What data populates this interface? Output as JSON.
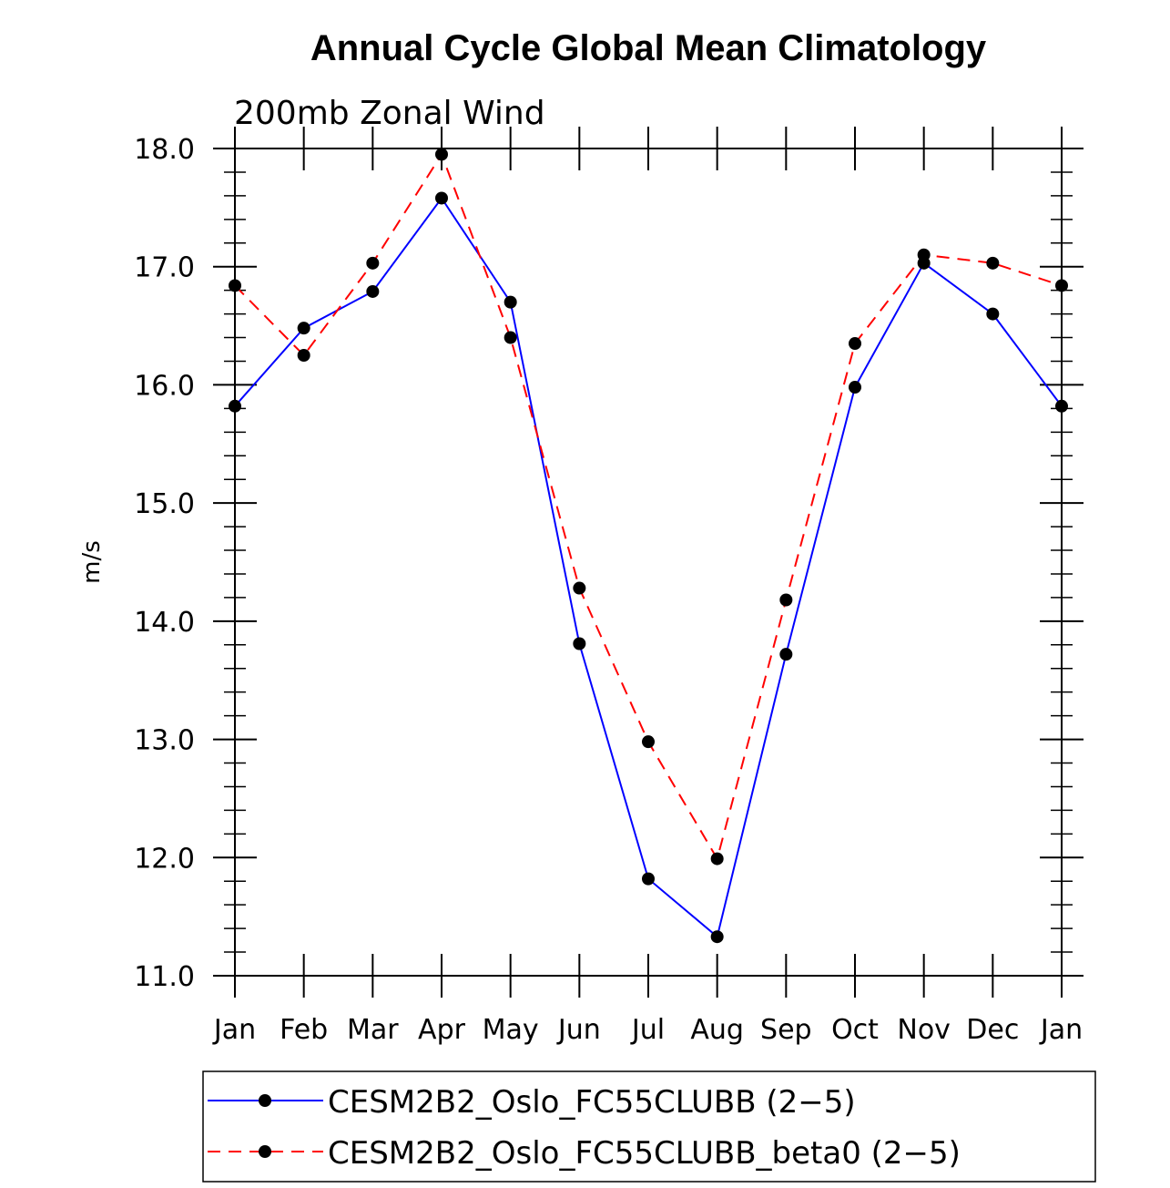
{
  "chart_data": {
    "type": "line",
    "title": "Annual Cycle Global Mean Climatology",
    "subtitle": "200mb Zonal Wind",
    "xlabel": "",
    "ylabel": "m/s",
    "categories": [
      "Jan",
      "Feb",
      "Mar",
      "Apr",
      "May",
      "Jun",
      "Jul",
      "Aug",
      "Sep",
      "Oct",
      "Nov",
      "Dec",
      "Jan"
    ],
    "ylim": [
      11.0,
      18.0
    ],
    "yticks": [
      "11.0",
      "12.0",
      "13.0",
      "14.0",
      "15.0",
      "16.0",
      "17.0",
      "18.0"
    ],
    "grid": false,
    "legend_position": "bottom",
    "series": [
      {
        "name": "CESM2B2_Oslo_FC55CLUBB (2−5)",
        "color": "#0000ff",
        "dash": "solid",
        "values": [
          15.82,
          16.48,
          16.79,
          17.58,
          16.7,
          13.81,
          11.82,
          11.33,
          13.72,
          15.98,
          17.03,
          16.6,
          15.82
        ]
      },
      {
        "name": "CESM2B2_Oslo_FC55CLUBB_beta0 (2−5)",
        "color": "#ff0000",
        "dash": "dashed",
        "values": [
          16.84,
          16.25,
          17.03,
          17.95,
          16.4,
          14.28,
          12.98,
          11.99,
          14.18,
          16.35,
          17.1,
          17.03,
          16.84
        ]
      }
    ]
  }
}
